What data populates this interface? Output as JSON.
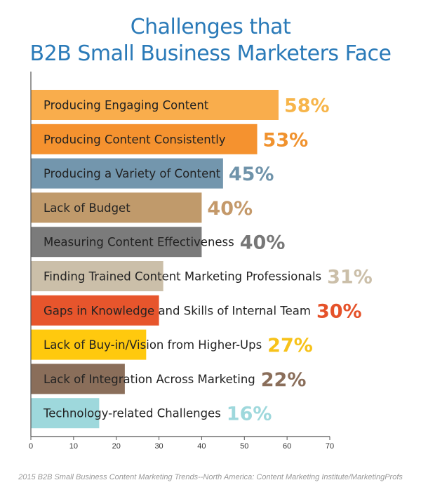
{
  "title_line1": "Challenges that",
  "title_line2": "B2B Small Business Marketers Face",
  "source": "2015 B2B Small Business Content Marketing Trends--North America: Content Marketing Institute/MarketingProfs",
  "chart_data": {
    "type": "bar",
    "orientation": "horizontal",
    "categories": [
      "Producing Engaging Content",
      "Producing Content Consistently",
      "Producing a Variety of Content",
      "Lack of Budget",
      "Measuring Content Effectiveness",
      "Finding Trained Content Marketing Professionals",
      "Gaps in Knowledge and Skills of Internal Team",
      "Lack of Buy-in/Vision from Higher-Ups",
      "Lack of Integration Across Marketing",
      "Technology-related Challenges"
    ],
    "values": [
      58,
      53,
      45,
      40,
      40,
      31,
      30,
      27,
      22,
      16
    ],
    "value_labels": [
      "58%",
      "53%",
      "45%",
      "40%",
      "40%",
      "31%",
      "30%",
      "27%",
      "22%",
      "16%"
    ],
    "colors": [
      "#f9ad4c",
      "#f5922f",
      "#7396ad",
      "#c09a6b",
      "#7b7b7b",
      "#cbbfa9",
      "#e7552c",
      "#ffc90e",
      "#8a6e5a",
      "#9ed8dc"
    ],
    "label_colors": [
      "#f7b54a",
      "#f0922e",
      "#6f93aa",
      "#c4996a",
      "#777777",
      "#cbbfa9",
      "#e5522a",
      "#f7c21a",
      "#8a6e5a",
      "#9ed8dc"
    ],
    "xlim": [
      0,
      70
    ],
    "xticks": [
      "0",
      "10",
      "20",
      "30",
      "40",
      "50",
      "60",
      "70"
    ],
    "xlabel": "",
    "ylabel": "",
    "grid": false
  }
}
